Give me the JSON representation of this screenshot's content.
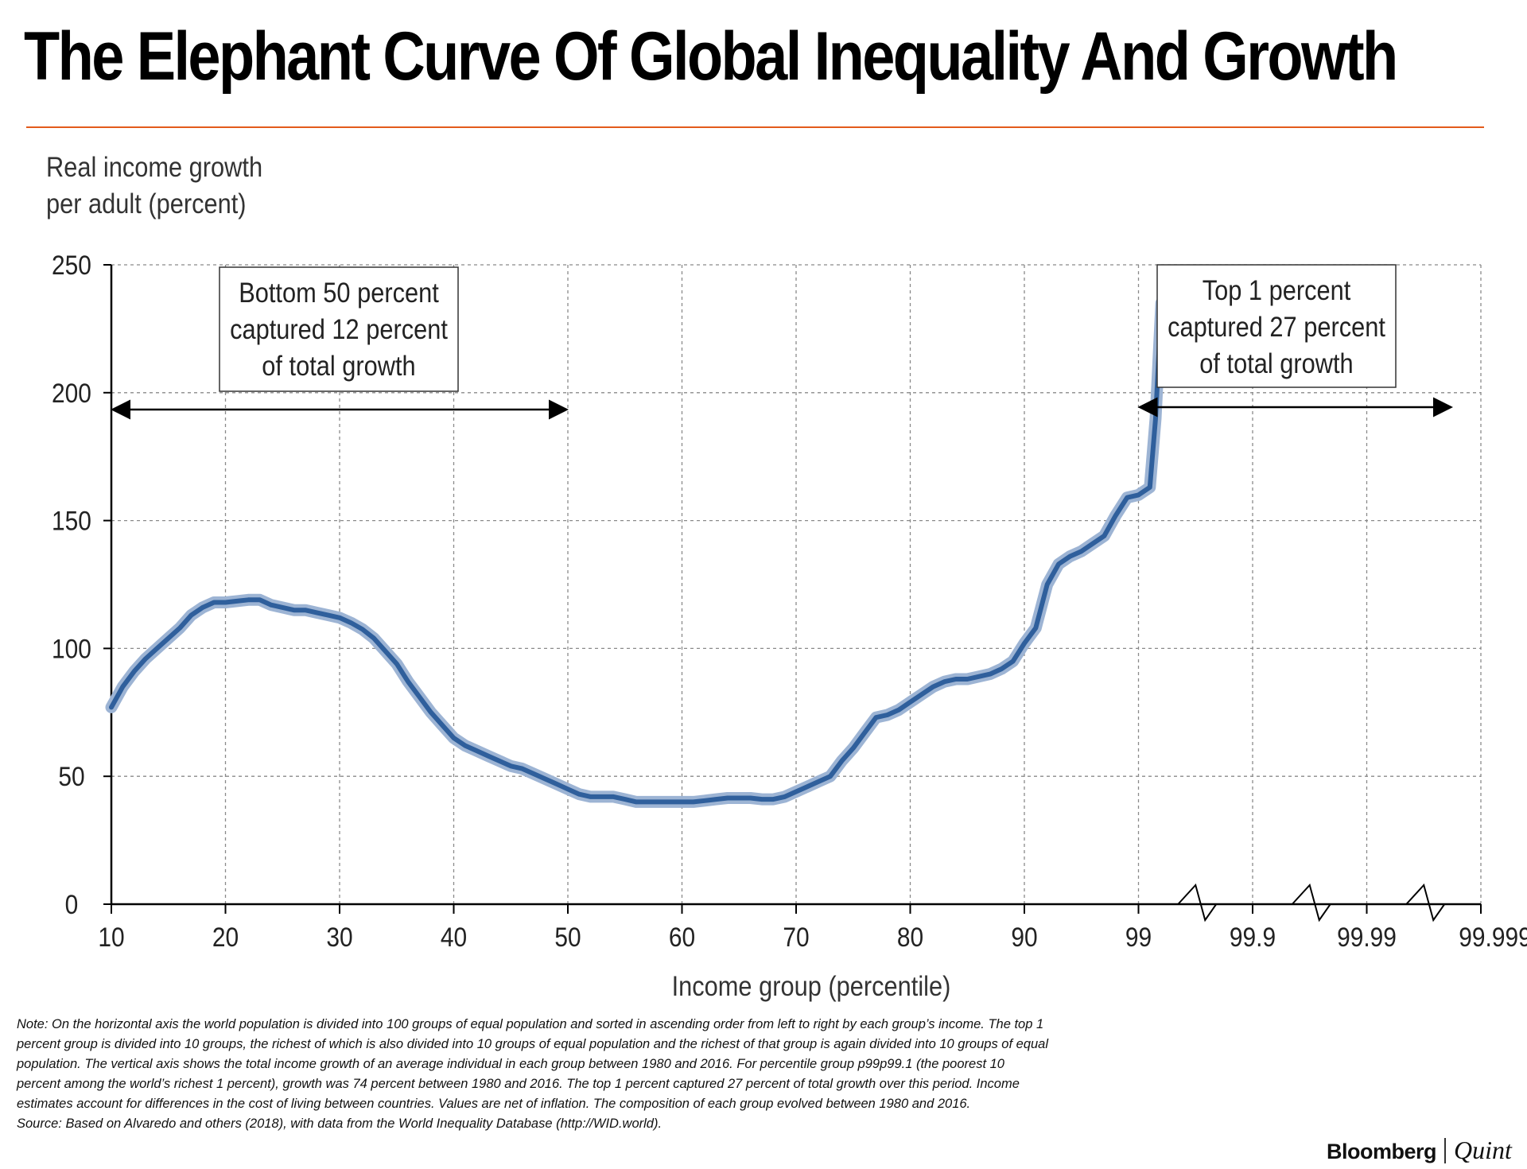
{
  "title": "The Elephant Curve Of Global Inequality And Growth",
  "chart_data": {
    "type": "line",
    "title": "The Elephant Curve Of Global Inequality And Growth",
    "ylabel_lines": [
      "Real income growth",
      "per adult (percent)"
    ],
    "xlabel": "Income group (percentile)",
    "ylim": [
      0,
      250
    ],
    "yticks": [
      0,
      50,
      100,
      150,
      200,
      250
    ],
    "x_tick_labels": [
      "10",
      "20",
      "30",
      "40",
      "50",
      "60",
      "70",
      "80",
      "90",
      "99",
      "99.9",
      "99.99",
      "99.999"
    ],
    "x_tick_positions": [
      0,
      1,
      2,
      3,
      4,
      5,
      6,
      7,
      8,
      9,
      10,
      11,
      12
    ],
    "x_axis_note": "tick position index: 0–8 = percentiles 10–90 (10 per step), 9 = 99, 10 = 99.9, 11 = 99.99, 12 = 99.999 (log-stretched top segment)",
    "grid": true,
    "series": [
      {
        "name": "Real income growth per adult 1980–2016",
        "color": "#2f5f9c",
        "points": [
          [
            0,
            77
          ],
          [
            0.1,
            85
          ],
          [
            0.2,
            91
          ],
          [
            0.3,
            96
          ],
          [
            0.4,
            100
          ],
          [
            0.5,
            104
          ],
          [
            0.6,
            108
          ],
          [
            0.7,
            113
          ],
          [
            0.8,
            116
          ],
          [
            0.9,
            118
          ],
          [
            1.0,
            118
          ],
          [
            1.1,
            118.5
          ],
          [
            1.2,
            119
          ],
          [
            1.3,
            119
          ],
          [
            1.4,
            117
          ],
          [
            1.5,
            116
          ],
          [
            1.6,
            115
          ],
          [
            1.7,
            115
          ],
          [
            1.8,
            114
          ],
          [
            1.9,
            113
          ],
          [
            2.0,
            112
          ],
          [
            2.1,
            110
          ],
          [
            2.2,
            107.5
          ],
          [
            2.3,
            104
          ],
          [
            2.4,
            99
          ],
          [
            2.5,
            94
          ],
          [
            2.6,
            87
          ],
          [
            2.7,
            81
          ],
          [
            2.8,
            75
          ],
          [
            2.9,
            70
          ],
          [
            3.0,
            65
          ],
          [
            3.1,
            62
          ],
          [
            3.2,
            60
          ],
          [
            3.3,
            58
          ],
          [
            3.4,
            56
          ],
          [
            3.5,
            54
          ],
          [
            3.6,
            53
          ],
          [
            3.7,
            51
          ],
          [
            3.8,
            49
          ],
          [
            3.9,
            47
          ],
          [
            4.0,
            45
          ],
          [
            4.1,
            43
          ],
          [
            4.2,
            42
          ],
          [
            4.3,
            42
          ],
          [
            4.4,
            42
          ],
          [
            4.5,
            41
          ],
          [
            4.6,
            40
          ],
          [
            4.7,
            40
          ],
          [
            4.8,
            40
          ],
          [
            4.9,
            40
          ],
          [
            5.0,
            40
          ],
          [
            5.1,
            40
          ],
          [
            5.2,
            40.5
          ],
          [
            5.3,
            41
          ],
          [
            5.4,
            41.5
          ],
          [
            5.5,
            41.5
          ],
          [
            5.6,
            41.5
          ],
          [
            5.7,
            41
          ],
          [
            5.8,
            41
          ],
          [
            5.9,
            42
          ],
          [
            6.0,
            44
          ],
          [
            6.1,
            46
          ],
          [
            6.2,
            48
          ],
          [
            6.3,
            50
          ],
          [
            6.4,
            56
          ],
          [
            6.5,
            61
          ],
          [
            6.6,
            67
          ],
          [
            6.7,
            73
          ],
          [
            6.8,
            74
          ],
          [
            6.9,
            76
          ],
          [
            7.0,
            79
          ],
          [
            7.1,
            82
          ],
          [
            7.2,
            85
          ],
          [
            7.3,
            87
          ],
          [
            7.4,
            88
          ],
          [
            7.5,
            88
          ],
          [
            7.6,
            89
          ],
          [
            7.7,
            90
          ],
          [
            7.8,
            92
          ],
          [
            7.9,
            95
          ],
          [
            8.0,
            102
          ],
          [
            8.1,
            108
          ],
          [
            8.2,
            125
          ],
          [
            8.3,
            133
          ],
          [
            8.4,
            136
          ],
          [
            8.5,
            138
          ],
          [
            8.6,
            141
          ],
          [
            8.7,
            144
          ],
          [
            8.8,
            152
          ],
          [
            8.9,
            159
          ],
          [
            9.0,
            160
          ],
          [
            9.1,
            163
          ],
          [
            9.15,
            190
          ],
          [
            9.2,
            235
          ]
        ]
      }
    ],
    "annotations": [
      {
        "lines": [
          "Bottom 50 percent",
          "captured 12 percent",
          "of total growth"
        ],
        "arrow_from_x": "10",
        "arrow_to_x": "50"
      },
      {
        "lines": [
          "Top 1 percent",
          "captured 27 percent",
          "of total growth"
        ],
        "arrow_from_x": "99",
        "arrow_to_x": "99.999"
      }
    ]
  },
  "note": {
    "text": "Note: On the horizontal axis the world population is divided into 100 groups of equal population and sorted in ascending order from left to right by each group’s income. The top 1 percent group is divided into 10 groups, the richest of which is also divided into 10 groups of equal population and the richest of that group is again divided into 10 groups of equal population. The vertical axis shows the total income growth of an average individual in each group between 1980 and 2016. For percentile group p99p99.1 (the poorest 10 percent among the world’s richest 1 percent), growth was 74 percent between 1980 and 2016. The top 1 percent captured 27 percent of total growth over this period. Income estimates account for differences in the cost of living between countries. Values are net of inflation. The composition of each group evolved between 1980 and 2016.",
    "source": "Source: Based on Alvaredo and others (2018), with data from the World Inequality Database (http://WID.world)."
  },
  "brand": {
    "name": "Bloomberg",
    "suffix": "Quint"
  }
}
